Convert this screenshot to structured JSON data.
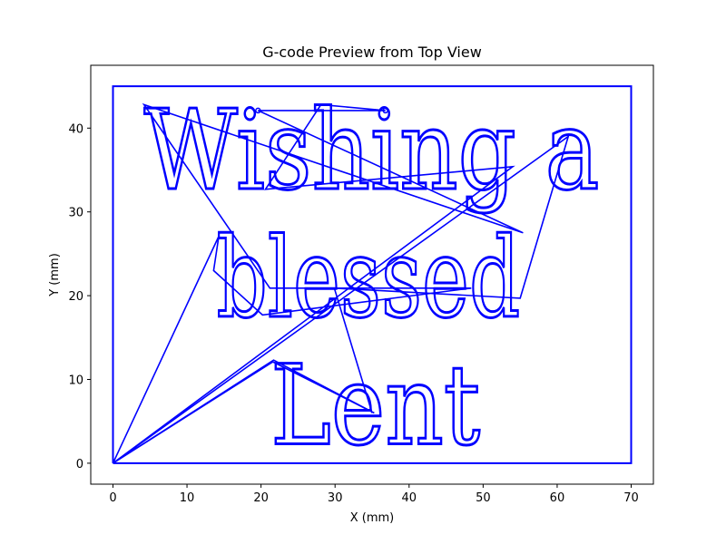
{
  "chart_data": {
    "type": "line",
    "title": "G-code Preview from Top View",
    "xlabel": "X (mm)",
    "ylabel": "Y (mm)",
    "xlim": [
      -3,
      73
    ],
    "ylim": [
      -2.5,
      47.5
    ],
    "xticks": [
      0,
      10,
      20,
      30,
      40,
      50,
      60,
      70
    ],
    "yticks": [
      0,
      10,
      20,
      30,
      40
    ],
    "grid": false,
    "series_color": "#0000ff",
    "engraved_text": [
      "Wishing a",
      "blessed",
      "Lent"
    ],
    "border": {
      "x": [
        0,
        70,
        70,
        0,
        0
      ],
      "y": [
        0,
        0,
        45,
        45,
        0
      ]
    },
    "travel_path": {
      "x": [
        0,
        14.3,
        13.6,
        20.2,
        48.4,
        21.2,
        4.2,
        55.4,
        19.6,
        36.8,
        28.1,
        20.6,
        54.0,
        0,
        21.6,
        35.3,
        21.7,
        0,
        61.5,
        55.0,
        29.9,
        35.0
      ],
      "y": [
        0,
        27.1,
        23.0,
        17.7,
        20.9,
        20.9,
        42.8,
        27.5,
        42.1,
        42.1,
        42.8,
        32.7,
        35.4,
        0,
        12.1,
        6.0,
        12.3,
        0,
        39.0,
        19.7,
        20.9,
        6.0
      ]
    },
    "markers": {
      "x": [
        19.6,
        36.8
      ],
      "y": [
        42.1,
        42.1
      ]
    }
  }
}
